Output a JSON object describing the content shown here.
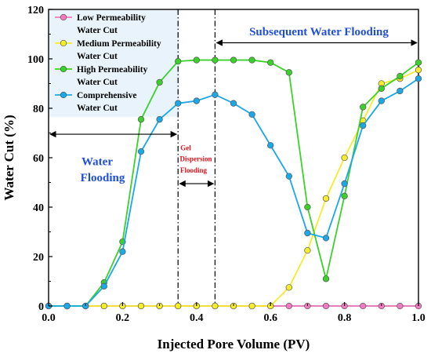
{
  "chart_data": {
    "type": "line",
    "xlabel": "Injected Pore Volume (PV)",
    "ylabel": "Water Cut (%)",
    "xlim": [
      0,
      1.0
    ],
    "ylim": [
      0,
      120
    ],
    "x_ticks": [
      "0.0",
      "0.2",
      "0.4",
      "0.6",
      "0.8",
      "1.0"
    ],
    "y_ticks": [
      "0",
      "20",
      "40",
      "60",
      "80",
      "100",
      "120"
    ],
    "grid": false,
    "legend_position": "top-left",
    "series": [
      {
        "name": "Low Permeability Water Cut",
        "color": "#f07ac0",
        "x": [
          0,
          0.05,
          0.1,
          0.15,
          0.2,
          0.25,
          0.3,
          0.35,
          0.4,
          0.45,
          0.5,
          0.55,
          0.6,
          0.65,
          0.7,
          0.75,
          0.8,
          0.85,
          0.9,
          0.95,
          1.0
        ],
        "y": [
          0,
          0,
          0,
          0,
          0,
          0,
          0,
          0,
          0,
          0,
          0,
          0,
          0,
          0,
          0,
          0,
          0,
          0,
          0,
          0,
          0
        ]
      },
      {
        "name": "Medium Permeability Water Cut",
        "color": "#f5ec2a",
        "x": [
          0,
          0.05,
          0.1,
          0.15,
          0.2,
          0.25,
          0.3,
          0.35,
          0.4,
          0.45,
          0.5,
          0.55,
          0.6,
          0.65,
          0.7,
          0.75,
          0.8,
          0.85,
          0.9,
          0.95,
          1.0
        ],
        "y": [
          0,
          0,
          0,
          0,
          0,
          0,
          0,
          0,
          0,
          0,
          0,
          0,
          0,
          7.5,
          22.5,
          43.5,
          60,
          75,
          90,
          92,
          95.5
        ]
      },
      {
        "name": "High Permeability Water Cut",
        "color": "#3bd12a",
        "x": [
          0,
          0.05,
          0.1,
          0.15,
          0.2,
          0.25,
          0.3,
          0.35,
          0.4,
          0.45,
          0.5,
          0.55,
          0.6,
          0.65,
          0.7,
          0.75,
          0.8,
          0.85,
          0.9,
          0.95,
          1.0
        ],
        "y": [
          0,
          0,
          0,
          9.5,
          26,
          75.5,
          90.5,
          99,
          99.5,
          99.5,
          99.5,
          99.5,
          98.5,
          94.5,
          40,
          11,
          44.5,
          80.5,
          88,
          93,
          98.5
        ]
      },
      {
        "name": "Comprehensive Water Cut",
        "color": "#1aa8e8",
        "x": [
          0,
          0.05,
          0.1,
          0.15,
          0.2,
          0.25,
          0.3,
          0.35,
          0.4,
          0.45,
          0.5,
          0.55,
          0.6,
          0.65,
          0.7,
          0.75,
          0.8,
          0.85,
          0.9,
          0.95,
          1.0
        ],
        "y": [
          0,
          0,
          0,
          8,
          22,
          62.5,
          75.5,
          82,
          83,
          85.5,
          82,
          77.5,
          65,
          52.5,
          29.5,
          27.5,
          49.5,
          73,
          83,
          87,
          92
        ]
      }
    ],
    "annotations": {
      "water_flooding_line1": "Water",
      "water_flooding_line2": "Flooding",
      "gel_line1": "Gel",
      "gel_line2": "Dispersion",
      "gel_line3": "Flooding",
      "subsequent": "Subsequent Water Flooding"
    },
    "phase_boundaries": [
      0.35,
      0.45
    ]
  }
}
